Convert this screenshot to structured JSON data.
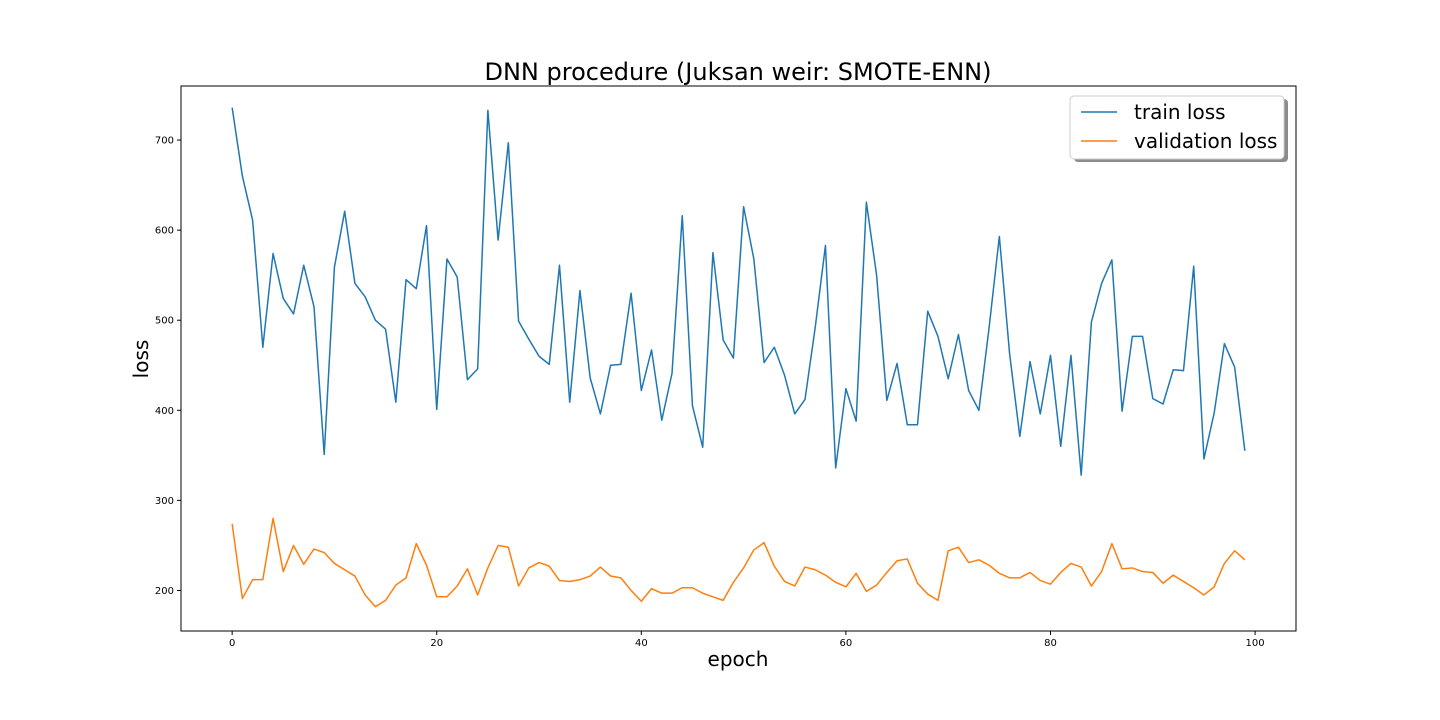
{
  "chart_data": {
    "type": "line",
    "title": "DNN procedure (Juksan weir: SMOTE-ENN)",
    "xlabel": "epoch",
    "ylabel": "loss",
    "xlim": [
      -5,
      104
    ],
    "ylim": [
      155,
      760
    ],
    "xticks": [
      0,
      20,
      40,
      60,
      80,
      100
    ],
    "yticks": [
      200,
      300,
      400,
      500,
      600,
      700
    ],
    "grid": false,
    "legend_position": "upper right",
    "series": [
      {
        "name": "train loss",
        "color": "#1f77b4",
        "x": [
          0,
          1,
          2,
          3,
          4,
          5,
          6,
          7,
          8,
          9,
          10,
          11,
          12,
          13,
          14,
          15,
          16,
          17,
          18,
          19,
          20,
          21,
          22,
          23,
          24,
          25,
          26,
          27,
          28,
          29,
          30,
          31,
          32,
          33,
          34,
          35,
          36,
          37,
          38,
          39,
          40,
          41,
          42,
          43,
          44,
          45,
          46,
          47,
          48,
          49,
          50,
          51,
          52,
          53,
          54,
          55,
          56,
          57,
          58,
          59,
          60,
          61,
          62,
          63,
          64,
          65,
          66,
          67,
          68,
          69,
          70,
          71,
          72,
          73,
          74,
          75,
          76,
          77,
          78,
          79,
          80,
          81,
          82,
          83,
          84,
          85,
          86,
          87,
          88,
          89,
          90,
          91,
          92,
          93,
          94,
          95,
          96,
          97,
          98,
          99
        ],
        "values": [
          736,
          660,
          611,
          470,
          574,
          524,
          507,
          561,
          515,
          351,
          559,
          621,
          541,
          526,
          500,
          490,
          409,
          545,
          535,
          605,
          401,
          568,
          548,
          434,
          446,
          733,
          589,
          697,
          499,
          479,
          460,
          451,
          561,
          409,
          533,
          436,
          396,
          450,
          451,
          530,
          422,
          467,
          389,
          441,
          616,
          405,
          359,
          575,
          478,
          458,
          626,
          568,
          453,
          470,
          439,
          396,
          412,
          492,
          583,
          336,
          424,
          388,
          631,
          550,
          411,
          452,
          384,
          384,
          510,
          482,
          435,
          484,
          422,
          400,
          492,
          593,
          463,
          371,
          454,
          396,
          461,
          360,
          461,
          328,
          498,
          541,
          567,
          399,
          482,
          482,
          413,
          407,
          445,
          444,
          560,
          346,
          397,
          474,
          448,
          355
        ]
      },
      {
        "name": "validation loss",
        "color": "#ff7f0e",
        "x": [
          0,
          1,
          2,
          3,
          4,
          5,
          6,
          7,
          8,
          9,
          10,
          11,
          12,
          13,
          14,
          15,
          16,
          17,
          18,
          19,
          20,
          21,
          22,
          23,
          24,
          25,
          26,
          27,
          28,
          29,
          30,
          31,
          32,
          33,
          34,
          35,
          36,
          37,
          38,
          39,
          40,
          41,
          42,
          43,
          44,
          45,
          46,
          47,
          48,
          49,
          50,
          51,
          52,
          53,
          54,
          55,
          56,
          57,
          58,
          59,
          60,
          61,
          62,
          63,
          64,
          65,
          66,
          67,
          68,
          69,
          70,
          71,
          72,
          73,
          74,
          75,
          76,
          77,
          78,
          79,
          80,
          81,
          82,
          83,
          84,
          85,
          86,
          87,
          88,
          89,
          90,
          91,
          92,
          93,
          94,
          95,
          96,
          97,
          98,
          99
        ],
        "values": [
          274,
          191,
          212,
          212,
          280,
          221,
          250,
          229,
          246,
          242,
          230,
          223,
          216,
          195,
          182,
          189,
          206,
          214,
          252,
          228,
          193,
          193,
          205,
          224,
          195,
          225,
          250,
          248,
          205,
          225,
          231,
          227,
          211,
          210,
          212,
          216,
          226,
          216,
          214,
          200,
          188,
          202,
          197,
          197,
          203,
          203,
          197,
          193,
          189,
          209,
          225,
          245,
          253,
          227,
          210,
          205,
          226,
          223,
          217,
          209,
          204,
          219,
          199,
          206,
          220,
          233,
          235,
          208,
          196,
          189,
          244,
          248,
          231,
          234,
          228,
          219,
          214,
          214,
          220,
          211,
          207,
          220,
          230,
          226,
          205,
          221,
          252,
          224,
          225,
          221,
          220,
          208,
          217,
          210,
          203,
          195,
          204,
          230,
          244,
          234
        ]
      }
    ]
  }
}
